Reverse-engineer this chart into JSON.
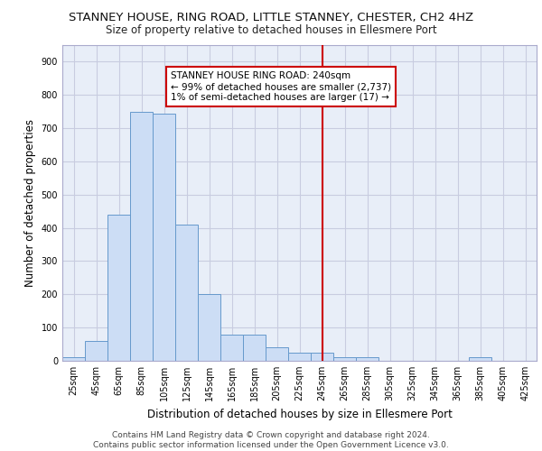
{
  "title": "STANNEY HOUSE, RING ROAD, LITTLE STANNEY, CHESTER, CH2 4HZ",
  "subtitle": "Size of property relative to detached houses in Ellesmere Port",
  "xlabel": "Distribution of detached houses by size in Ellesmere Port",
  "ylabel": "Number of detached properties",
  "bar_color": "#ccddf5",
  "bar_edge_color": "#6699cc",
  "background_color": "#e8eef8",
  "grid_color": "#c8cce0",
  "bar_values": [
    10,
    60,
    440,
    750,
    745,
    410,
    200,
    80,
    80,
    40,
    25,
    25,
    10,
    10,
    0,
    0,
    0,
    0,
    10,
    0,
    0
  ],
  "bin_labels": [
    "25sqm",
    "45sqm",
    "65sqm",
    "85sqm",
    "105sqm",
    "125sqm",
    "145sqm",
    "165sqm",
    "185sqm",
    "205sqm",
    "225sqm",
    "245sqm",
    "265sqm",
    "285sqm",
    "305sqm",
    "325sqm",
    "345sqm",
    "365sqm",
    "385sqm",
    "405sqm",
    "425sqm"
  ],
  "ylim": [
    0,
    950
  ],
  "yticks": [
    0,
    100,
    200,
    300,
    400,
    500,
    600,
    700,
    800,
    900
  ],
  "red_line_index": 11,
  "annotation_text": "STANNEY HOUSE RING ROAD: 240sqm\n← 99% of detached houses are smaller (2,737)\n1% of semi-detached houses are larger (17) →",
  "annotation_box_color": "#ffffff",
  "annotation_border_color": "#cc0000",
  "footer_line1": "Contains HM Land Registry data © Crown copyright and database right 2024.",
  "footer_line2": "Contains public sector information licensed under the Open Government Licence v3.0.",
  "title_fontsize": 9.5,
  "subtitle_fontsize": 8.5,
  "tick_fontsize": 7,
  "ylabel_fontsize": 8.5,
  "xlabel_fontsize": 8.5,
  "footer_fontsize": 6.5,
  "annot_fontsize": 7.5
}
